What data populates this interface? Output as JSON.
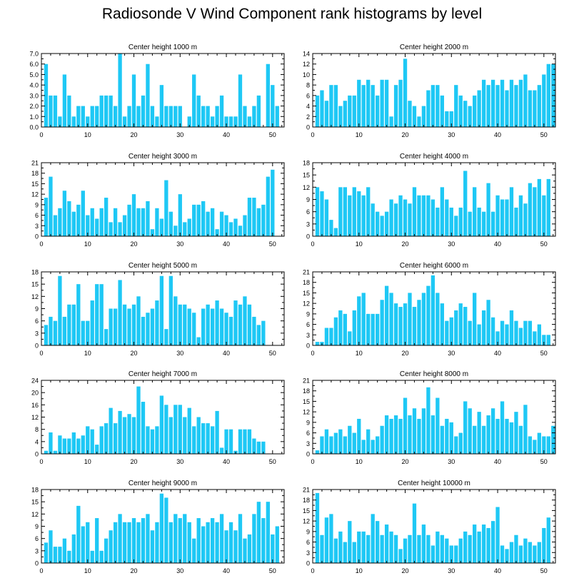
{
  "title": "Radiosonde V Wind Component rank histograms by level",
  "colors": {
    "bar": "#1EC8F5",
    "axis": "#000000"
  },
  "chart_data": [
    {
      "type": "bar",
      "title": "Center height 1000 m",
      "xlim": [
        0,
        52.5
      ],
      "ylim": [
        0,
        7
      ],
      "xticks": [
        0,
        10,
        20,
        30,
        40,
        50
      ],
      "yticks": [
        0,
        1,
        2,
        3,
        4,
        5,
        6,
        7
      ],
      "ytick_labels": [
        "0.0",
        "1.0",
        "2.0",
        "3.0",
        "4.0",
        "5.0",
        "6.0",
        "7.0"
      ],
      "values": [
        6,
        3,
        3,
        1,
        5,
        3,
        1,
        2,
        2,
        1,
        2,
        2,
        3,
        3,
        3,
        2,
        7,
        1,
        2,
        5,
        2,
        3,
        6,
        2,
        1,
        4,
        2,
        2,
        2,
        2,
        0,
        1,
        5,
        3,
        2,
        2,
        1,
        2,
        3,
        1,
        1,
        1,
        5,
        2,
        1,
        2,
        3,
        0,
        6,
        4,
        2
      ]
    },
    {
      "type": "bar",
      "title": "Center height 2000 m",
      "xlim": [
        0,
        52.5
      ],
      "ylim": [
        0,
        14
      ],
      "xticks": [
        0,
        10,
        20,
        30,
        40,
        50
      ],
      "yticks": [
        0,
        2,
        4,
        6,
        8,
        10,
        12,
        14
      ],
      "ytick_labels": [
        "0",
        "2",
        "4",
        "6",
        "8",
        "10",
        "12",
        "14"
      ],
      "values": [
        6,
        7,
        5,
        8,
        8,
        4,
        5,
        6,
        6,
        9,
        8,
        9,
        8,
        6,
        9,
        9,
        2,
        8,
        9,
        13,
        5,
        4,
        2,
        4,
        7,
        8,
        8,
        6,
        3,
        3,
        8,
        6,
        5,
        4,
        6,
        7,
        9,
        8,
        9,
        8,
        9,
        7,
        9,
        8,
        9,
        10,
        7,
        7,
        8,
        10,
        12,
        12
      ]
    },
    {
      "type": "bar",
      "title": "Center height 3000 m",
      "xlim": [
        0,
        52.5
      ],
      "ylim": [
        0,
        21
      ],
      "xticks": [
        0,
        10,
        20,
        30,
        40,
        50
      ],
      "yticks": [
        0,
        3,
        6,
        9,
        12,
        15,
        18,
        21
      ],
      "ytick_labels": [
        "0",
        "3",
        "6",
        "9",
        "12",
        "15",
        "18",
        "21"
      ],
      "values": [
        11,
        17,
        6,
        8,
        13,
        10,
        7,
        9,
        13,
        6,
        8,
        5,
        8,
        11,
        4,
        8,
        4,
        6,
        9,
        12,
        8,
        8,
        10,
        2,
        8,
        5,
        16,
        7,
        3,
        12,
        4,
        5,
        9,
        9,
        10,
        7,
        8,
        2,
        7,
        6,
        4,
        5,
        3,
        6,
        11,
        11,
        8,
        9,
        17,
        19
      ]
    },
    {
      "type": "bar",
      "title": "Center height 4000 m",
      "xlim": [
        0,
        52.5
      ],
      "ylim": [
        0,
        18
      ],
      "xticks": [
        0,
        10,
        20,
        30,
        40,
        50
      ],
      "yticks": [
        0,
        3,
        6,
        9,
        12,
        15,
        18
      ],
      "ytick_labels": [
        "0",
        "3",
        "6",
        "9",
        "12",
        "15",
        "18"
      ],
      "values": [
        12,
        11,
        9,
        4,
        2,
        12,
        12,
        10,
        12,
        11,
        10,
        12,
        8,
        6,
        5,
        6,
        9,
        8,
        10,
        9,
        8,
        12,
        10,
        10,
        10,
        9,
        7,
        12,
        9,
        7,
        5,
        7,
        16,
        6,
        12,
        7,
        6,
        13,
        6,
        10,
        9,
        9,
        12,
        7,
        10,
        8,
        13,
        12,
        14,
        10,
        14
      ]
    },
    {
      "type": "bar",
      "title": "Center height 5000 m",
      "xlim": [
        0,
        52.5
      ],
      "ylim": [
        0,
        18
      ],
      "xticks": [
        0,
        10,
        20,
        30,
        40,
        50
      ],
      "yticks": [
        0,
        3,
        6,
        9,
        12,
        15,
        18
      ],
      "ytick_labels": [
        "0",
        "3",
        "6",
        "9",
        "12",
        "15",
        "18"
      ],
      "values": [
        5,
        7,
        6,
        17,
        7,
        10,
        10,
        15,
        6,
        6,
        11,
        15,
        15,
        4,
        9,
        9,
        16,
        10,
        9,
        10,
        12,
        7,
        8,
        9,
        11,
        17,
        4,
        17,
        12,
        10,
        10,
        9,
        8,
        2,
        9,
        10,
        9,
        11,
        9,
        8,
        7,
        11,
        10,
        12,
        10,
        7,
        5,
        6
      ]
    },
    {
      "type": "bar",
      "title": "Center height 6000 m",
      "xlim": [
        0,
        52.5
      ],
      "ylim": [
        0,
        21
      ],
      "xticks": [
        0,
        10,
        20,
        30,
        40,
        50
      ],
      "yticks": [
        0,
        3,
        6,
        9,
        12,
        15,
        18,
        21
      ],
      "ytick_labels": [
        "0",
        "3",
        "6",
        "9",
        "12",
        "15",
        "18",
        "21"
      ],
      "values": [
        1,
        1,
        5,
        5,
        8,
        10,
        9,
        4,
        10,
        14,
        15,
        9,
        9,
        9,
        13,
        17,
        15,
        12,
        11,
        12,
        15,
        11,
        13,
        15,
        17,
        20,
        15,
        12,
        7,
        8,
        10,
        12,
        11,
        7,
        15,
        6,
        10,
        13,
        8,
        4,
        7,
        6,
        10,
        7,
        5,
        7,
        7,
        4,
        6,
        3,
        3
      ]
    },
    {
      "type": "bar",
      "title": "Center height 7000 m",
      "xlim": [
        0,
        52.5
      ],
      "ylim": [
        0,
        24
      ],
      "xticks": [
        0,
        10,
        20,
        30,
        40,
        50
      ],
      "yticks": [
        0,
        4,
        8,
        12,
        16,
        20,
        24
      ],
      "ytick_labels": [
        "0",
        "4",
        "8",
        "12",
        "16",
        "20",
        "24"
      ],
      "values": [
        1,
        7,
        1,
        6,
        5,
        5,
        7,
        5,
        6,
        9,
        8,
        3,
        9,
        10,
        15,
        10,
        14,
        12,
        13,
        12,
        22,
        17,
        9,
        8,
        9,
        19,
        16,
        12,
        16,
        16,
        12,
        15,
        9,
        12,
        10,
        10,
        9,
        14,
        2,
        8,
        8,
        1,
        8,
        8,
        8,
        5,
        4,
        4
      ]
    },
    {
      "type": "bar",
      "title": "Center height 8000 m",
      "xlim": [
        0,
        52.5
      ],
      "ylim": [
        0,
        21
      ],
      "xticks": [
        0,
        10,
        20,
        30,
        40,
        50
      ],
      "yticks": [
        0,
        3,
        6,
        9,
        12,
        15,
        18,
        21
      ],
      "ytick_labels": [
        "0",
        "3",
        "6",
        "9",
        "12",
        "15",
        "18",
        "21"
      ],
      "values": [
        1,
        5,
        7,
        5,
        6,
        7,
        5,
        8,
        6,
        10,
        4,
        7,
        4,
        5,
        8,
        11,
        10,
        11,
        10,
        16,
        11,
        13,
        10,
        13,
        19,
        11,
        16,
        8,
        10,
        9,
        5,
        6,
        15,
        13,
        8,
        12,
        8,
        11,
        13,
        10,
        15,
        10,
        9,
        12,
        8,
        14,
        5,
        4,
        6,
        5,
        5,
        8
      ]
    },
    {
      "type": "bar",
      "title": "Center height 9000 m",
      "xlim": [
        0,
        52.5
      ],
      "ylim": [
        0,
        18
      ],
      "xticks": [
        0,
        10,
        20,
        30,
        40,
        50
      ],
      "yticks": [
        0,
        3,
        6,
        9,
        12,
        15,
        18
      ],
      "ytick_labels": [
        "0",
        "3",
        "6",
        "9",
        "12",
        "15",
        "18"
      ],
      "values": [
        5,
        8,
        4,
        4,
        6,
        3,
        7,
        14,
        9,
        10,
        3,
        11,
        3,
        6,
        8,
        10,
        12,
        10,
        10,
        11,
        10,
        11,
        12,
        8,
        10,
        17,
        16,
        10,
        12,
        11,
        12,
        10,
        6,
        11,
        9,
        10,
        11,
        10,
        12,
        8,
        10,
        8,
        12,
        6,
        7,
        12,
        15,
        11,
        15,
        7,
        9
      ]
    },
    {
      "type": "bar",
      "title": "Center height 10000 m",
      "xlim": [
        0,
        52.5
      ],
      "ylim": [
        0,
        21
      ],
      "xticks": [
        0,
        10,
        20,
        30,
        40,
        50
      ],
      "yticks": [
        0,
        3,
        6,
        9,
        12,
        15,
        18,
        21
      ],
      "ytick_labels": [
        "0",
        "3",
        "6",
        "9",
        "12",
        "15",
        "18",
        "21"
      ],
      "values": [
        20,
        8,
        13,
        14,
        7,
        9,
        6,
        12,
        6,
        9,
        9,
        8,
        14,
        12,
        8,
        11,
        9,
        8,
        4,
        7,
        8,
        17,
        8,
        11,
        8,
        5,
        9,
        8,
        7,
        5,
        5,
        7,
        9,
        8,
        11,
        9,
        11,
        10,
        12,
        16,
        5,
        4,
        6,
        8,
        5,
        7,
        6,
        5,
        6,
        10,
        13
      ]
    }
  ]
}
